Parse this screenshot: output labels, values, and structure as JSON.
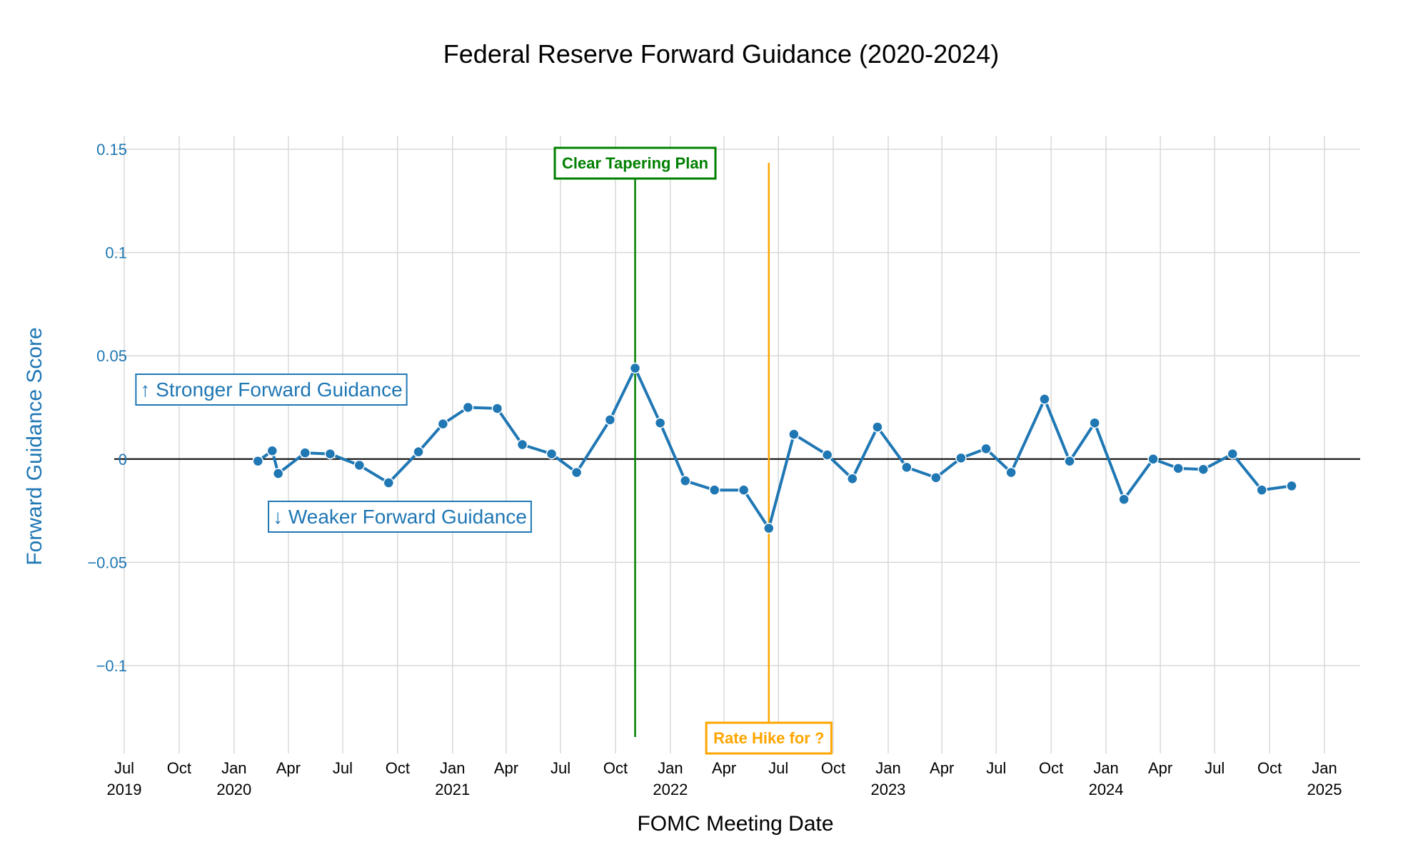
{
  "chart_data": {
    "type": "line",
    "title": "Federal Reserve Forward Guidance (2020-2024)",
    "xlabel": "FOMC Meeting Date",
    "ylabel": "Forward Guidance Score",
    "xlim": [
      "2019-07-01",
      "2025-01-01"
    ],
    "ylim": [
      -0.14,
      0.15
    ],
    "grid": true,
    "zero_line": true,
    "y_ticks": [
      {
        "value": 0.15,
        "label": "0.15"
      },
      {
        "value": 0.1,
        "label": "0.1"
      },
      {
        "value": 0.05,
        "label": "0.05"
      },
      {
        "value": 0,
        "label": "0"
      },
      {
        "value": -0.05,
        "label": "−0.05"
      },
      {
        "value": -0.1,
        "label": "−0.1"
      }
    ],
    "x_ticks": [
      {
        "date": "2019-07-01",
        "month": "Jul",
        "year": "2019"
      },
      {
        "date": "2019-10-01",
        "month": "Oct",
        "year": ""
      },
      {
        "date": "2020-01-01",
        "month": "Jan",
        "year": "2020"
      },
      {
        "date": "2020-04-01",
        "month": "Apr",
        "year": ""
      },
      {
        "date": "2020-07-01",
        "month": "Jul",
        "year": ""
      },
      {
        "date": "2020-10-01",
        "month": "Oct",
        "year": ""
      },
      {
        "date": "2021-01-01",
        "month": "Jan",
        "year": "2021"
      },
      {
        "date": "2021-04-01",
        "month": "Apr",
        "year": ""
      },
      {
        "date": "2021-07-01",
        "month": "Jul",
        "year": ""
      },
      {
        "date": "2021-10-01",
        "month": "Oct",
        "year": ""
      },
      {
        "date": "2022-01-01",
        "month": "Jan",
        "year": "2022"
      },
      {
        "date": "2022-04-01",
        "month": "Apr",
        "year": ""
      },
      {
        "date": "2022-07-01",
        "month": "Jul",
        "year": ""
      },
      {
        "date": "2022-10-01",
        "month": "Oct",
        "year": ""
      },
      {
        "date": "2023-01-01",
        "month": "Jan",
        "year": "2023"
      },
      {
        "date": "2023-04-01",
        "month": "Apr",
        "year": ""
      },
      {
        "date": "2023-07-01",
        "month": "Jul",
        "year": ""
      },
      {
        "date": "2023-10-01",
        "month": "Oct",
        "year": ""
      },
      {
        "date": "2024-01-01",
        "month": "Jan",
        "year": "2024"
      },
      {
        "date": "2024-04-01",
        "month": "Apr",
        "year": ""
      },
      {
        "date": "2024-07-01",
        "month": "Jul",
        "year": ""
      },
      {
        "date": "2024-10-01",
        "month": "Oct",
        "year": ""
      },
      {
        "date": "2025-01-01",
        "month": "Jan",
        "year": "2025"
      }
    ],
    "series": [
      {
        "color": "#1f77b4",
        "points": [
          {
            "date": "2020-02-10",
            "value": -0.001
          },
          {
            "date": "2020-03-05",
            "value": 0.004
          },
          {
            "date": "2020-03-15",
            "value": -0.007
          },
          {
            "date": "2020-04-29",
            "value": 0.003
          },
          {
            "date": "2020-06-10",
            "value": 0.0025
          },
          {
            "date": "2020-07-29",
            "value": -0.003
          },
          {
            "date": "2020-09-16",
            "value": -0.0115
          },
          {
            "date": "2020-11-05",
            "value": 0.0035
          },
          {
            "date": "2020-12-16",
            "value": 0.017
          },
          {
            "date": "2021-01-27",
            "value": 0.025
          },
          {
            "date": "2021-03-17",
            "value": 0.0245
          },
          {
            "date": "2021-04-28",
            "value": 0.007
          },
          {
            "date": "2021-06-16",
            "value": 0.0025
          },
          {
            "date": "2021-07-28",
            "value": -0.0065
          },
          {
            "date": "2021-09-22",
            "value": 0.019
          },
          {
            "date": "2021-11-03",
            "value": 0.044
          },
          {
            "date": "2021-12-15",
            "value": 0.0175
          },
          {
            "date": "2022-01-26",
            "value": -0.0105
          },
          {
            "date": "2022-03-16",
            "value": -0.015
          },
          {
            "date": "2022-05-04",
            "value": -0.015
          },
          {
            "date": "2022-06-15",
            "value": -0.0335
          },
          {
            "date": "2022-07-27",
            "value": 0.012
          },
          {
            "date": "2022-09-21",
            "value": 0.002
          },
          {
            "date": "2022-11-02",
            "value": -0.0095
          },
          {
            "date": "2022-12-14",
            "value": 0.0155
          },
          {
            "date": "2023-02-01",
            "value": -0.004
          },
          {
            "date": "2023-03-22",
            "value": -0.009
          },
          {
            "date": "2023-05-03",
            "value": 0.0005
          },
          {
            "date": "2023-06-14",
            "value": 0.005
          },
          {
            "date": "2023-07-26",
            "value": -0.0065
          },
          {
            "date": "2023-09-20",
            "value": 0.029
          },
          {
            "date": "2023-11-01",
            "value": -0.001
          },
          {
            "date": "2023-12-13",
            "value": 0.0175
          },
          {
            "date": "2024-01-31",
            "value": -0.0195
          },
          {
            "date": "2024-03-20",
            "value": 0.0
          },
          {
            "date": "2024-05-01",
            "value": -0.0045
          },
          {
            "date": "2024-06-12",
            "value": -0.005
          },
          {
            "date": "2024-07-31",
            "value": 0.0025
          },
          {
            "date": "2024-09-18",
            "value": -0.015
          },
          {
            "date": "2024-11-07",
            "value": -0.013
          }
        ]
      }
    ],
    "event_lines": [
      {
        "date": "2021-11-03",
        "label": "Clear Tapering Plan",
        "color": "#008000",
        "label_position": "top"
      },
      {
        "date": "2022-06-15",
        "label": "Rate Hike for ?",
        "color": "#ffa500",
        "label_position": "bottom"
      }
    ],
    "side_annotations": {
      "upper": "↑ Stronger Forward Guidance",
      "lower": "↓ Weaker Forward Guidance",
      "color": "#1f77b4"
    },
    "colors": {
      "axis_text": "#1f77b4",
      "grid": "#d9d9d9",
      "zero_line": "#000000"
    }
  }
}
